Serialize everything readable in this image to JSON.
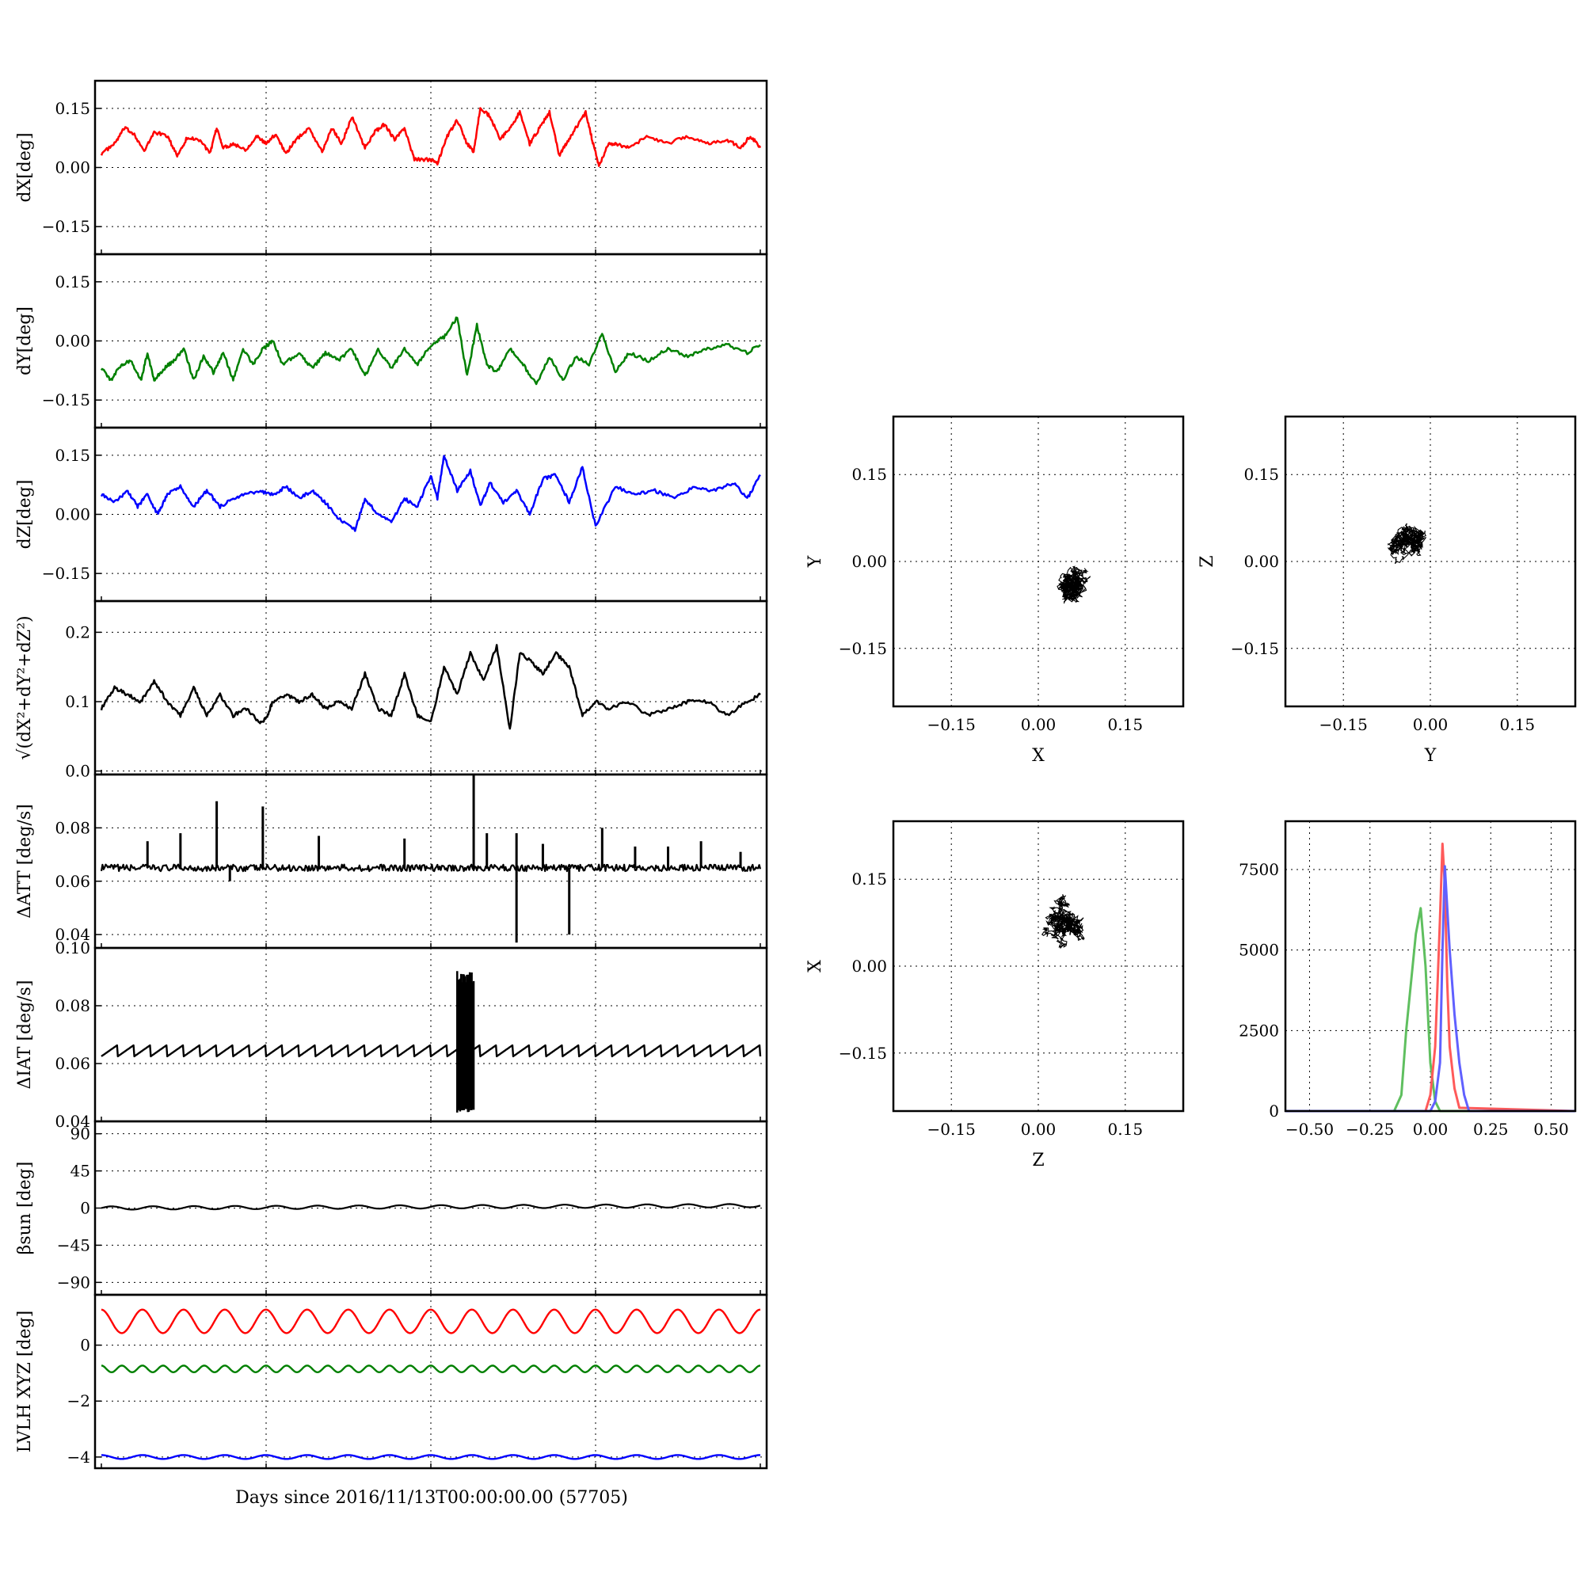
{
  "figure": {
    "xlabel": "Days since 2016/11/13T00:00:00.00 (57705)"
  },
  "chart_data": [
    {
      "type": "line",
      "id": "dx",
      "ylabel": "dX[deg]",
      "ylim": [
        -0.22,
        0.22
      ],
      "yticks": [
        -0.15,
        0.0,
        0.15
      ],
      "ytick_labels": [
        "−0.15",
        "0.00",
        "0.15"
      ],
      "xlim": [
        0,
        1
      ],
      "grid": true,
      "color": "#ff0000",
      "x": [
        0.0,
        0.02,
        0.035,
        0.05,
        0.065,
        0.08,
        0.1,
        0.115,
        0.13,
        0.15,
        0.165,
        0.175,
        0.185,
        0.2,
        0.22,
        0.235,
        0.25,
        0.265,
        0.28,
        0.295,
        0.315,
        0.335,
        0.35,
        0.365,
        0.38,
        0.4,
        0.415,
        0.43,
        0.445,
        0.46,
        0.475,
        0.5,
        0.51,
        0.525,
        0.54,
        0.555,
        0.565,
        0.575,
        0.59,
        0.605,
        0.62,
        0.635,
        0.65,
        0.665,
        0.68,
        0.695,
        0.705,
        0.72,
        0.735,
        0.745,
        0.755,
        0.77,
        0.78,
        0.8,
        0.83,
        0.86,
        0.89,
        0.92,
        0.95,
        0.97,
        0.985,
        1.0
      ],
      "y": [
        0.035,
        0.06,
        0.1,
        0.085,
        0.04,
        0.09,
        0.08,
        0.03,
        0.075,
        0.07,
        0.035,
        0.1,
        0.05,
        0.06,
        0.045,
        0.08,
        0.06,
        0.085,
        0.035,
        0.07,
        0.1,
        0.04,
        0.1,
        0.06,
        0.13,
        0.05,
        0.09,
        0.11,
        0.07,
        0.1,
        0.02,
        0.02,
        0.01,
        0.08,
        0.12,
        0.06,
        0.04,
        0.15,
        0.13,
        0.07,
        0.1,
        0.14,
        0.06,
        0.1,
        0.14,
        0.03,
        0.06,
        0.1,
        0.14,
        0.07,
        0.005,
        0.06,
        0.06,
        0.05,
        0.08,
        0.06,
        0.08,
        0.06,
        0.07,
        0.05,
        0.08,
        0.05
      ]
    },
    {
      "type": "line",
      "id": "dy",
      "ylabel": "dY[deg]",
      "ylim": [
        -0.22,
        0.22
      ],
      "yticks": [
        -0.15,
        0.0,
        0.15
      ],
      "ytick_labels": [
        "−0.15",
        "0.00",
        "0.15"
      ],
      "xlim": [
        0,
        1
      ],
      "grid": true,
      "color": "#008000",
      "x": [
        0.0,
        0.015,
        0.03,
        0.045,
        0.06,
        0.07,
        0.08,
        0.095,
        0.11,
        0.125,
        0.14,
        0.155,
        0.17,
        0.185,
        0.2,
        0.215,
        0.23,
        0.245,
        0.26,
        0.275,
        0.3,
        0.32,
        0.34,
        0.36,
        0.38,
        0.4,
        0.42,
        0.44,
        0.46,
        0.48,
        0.5,
        0.52,
        0.54,
        0.555,
        0.57,
        0.585,
        0.6,
        0.62,
        0.64,
        0.66,
        0.68,
        0.7,
        0.72,
        0.74,
        0.76,
        0.78,
        0.8,
        0.83,
        0.86,
        0.89,
        0.92,
        0.95,
        0.98,
        1.0
      ],
      "y": [
        -0.07,
        -0.1,
        -0.06,
        -0.05,
        -0.1,
        -0.03,
        -0.1,
        -0.07,
        -0.05,
        -0.02,
        -0.1,
        -0.04,
        -0.08,
        -0.03,
        -0.1,
        -0.02,
        -0.06,
        -0.02,
        0.0,
        -0.06,
        -0.03,
        -0.07,
        -0.03,
        -0.05,
        -0.02,
        -0.09,
        -0.02,
        -0.07,
        -0.02,
        -0.06,
        -0.01,
        0.01,
        0.06,
        -0.09,
        0.04,
        -0.06,
        -0.08,
        -0.02,
        -0.06,
        -0.11,
        -0.04,
        -0.1,
        -0.04,
        -0.06,
        0.02,
        -0.08,
        -0.03,
        -0.05,
        -0.02,
        -0.04,
        -0.02,
        -0.01,
        -0.03,
        -0.01
      ]
    },
    {
      "type": "line",
      "id": "dz",
      "ylabel": "dZ[deg]",
      "ylim": [
        -0.22,
        0.22
      ],
      "yticks": [
        -0.15,
        0.0,
        0.15
      ],
      "ytick_labels": [
        "−0.15",
        "0.00",
        "0.15"
      ],
      "xlim": [
        0,
        1
      ],
      "grid": true,
      "color": "#0000ff",
      "x": [
        0.0,
        0.02,
        0.04,
        0.055,
        0.07,
        0.085,
        0.1,
        0.12,
        0.14,
        0.16,
        0.18,
        0.2,
        0.22,
        0.24,
        0.26,
        0.28,
        0.3,
        0.32,
        0.34,
        0.36,
        0.385,
        0.4,
        0.42,
        0.44,
        0.46,
        0.48,
        0.5,
        0.51,
        0.52,
        0.54,
        0.56,
        0.575,
        0.59,
        0.61,
        0.63,
        0.65,
        0.67,
        0.69,
        0.71,
        0.73,
        0.75,
        0.78,
        0.81,
        0.84,
        0.87,
        0.9,
        0.93,
        0.96,
        0.98,
        1.0
      ],
      "y": [
        0.05,
        0.03,
        0.06,
        0.02,
        0.05,
        0.0,
        0.05,
        0.07,
        0.02,
        0.06,
        0.02,
        0.04,
        0.05,
        0.06,
        0.05,
        0.07,
        0.04,
        0.06,
        0.03,
        -0.01,
        -0.04,
        0.04,
        0.0,
        -0.02,
        0.04,
        0.02,
        0.1,
        0.04,
        0.15,
        0.06,
        0.11,
        0.02,
        0.08,
        0.03,
        0.06,
        0.0,
        0.09,
        0.1,
        0.03,
        0.12,
        -0.03,
        0.07,
        0.05,
        0.06,
        0.04,
        0.07,
        0.06,
        0.08,
        0.04,
        0.1
      ]
    },
    {
      "type": "line",
      "id": "rss",
      "ylabel": "√(dX²+dY²+dZ²)",
      "ylim": [
        -0.005,
        0.245
      ],
      "yticks": [
        0.0,
        0.1,
        0.2
      ],
      "ytick_labels": [
        "0.0",
        "0.1",
        "0.2"
      ],
      "xlim": [
        0,
        1
      ],
      "grid": true,
      "color": "#000000",
      "x": [
        0.0,
        0.02,
        0.04,
        0.06,
        0.08,
        0.1,
        0.12,
        0.14,
        0.16,
        0.18,
        0.2,
        0.22,
        0.24,
        0.25,
        0.26,
        0.28,
        0.3,
        0.32,
        0.34,
        0.36,
        0.38,
        0.4,
        0.42,
        0.44,
        0.46,
        0.48,
        0.5,
        0.52,
        0.54,
        0.56,
        0.58,
        0.6,
        0.62,
        0.635,
        0.65,
        0.67,
        0.69,
        0.71,
        0.73,
        0.75,
        0.77,
        0.8,
        0.83,
        0.86,
        0.89,
        0.92,
        0.95,
        0.98,
        1.0
      ],
      "y": [
        0.09,
        0.12,
        0.11,
        0.1,
        0.13,
        0.1,
        0.08,
        0.12,
        0.08,
        0.11,
        0.08,
        0.09,
        0.07,
        0.075,
        0.1,
        0.11,
        0.1,
        0.11,
        0.09,
        0.1,
        0.09,
        0.14,
        0.09,
        0.08,
        0.14,
        0.08,
        0.07,
        0.15,
        0.11,
        0.17,
        0.13,
        0.18,
        0.06,
        0.17,
        0.16,
        0.14,
        0.17,
        0.15,
        0.08,
        0.1,
        0.09,
        0.1,
        0.08,
        0.09,
        0.1,
        0.1,
        0.08,
        0.1,
        0.11
      ]
    },
    {
      "type": "line",
      "id": "datt",
      "ylabel": "ΔATT [deg/s]",
      "ylim": [
        0.035,
        0.1
      ],
      "yticks": [
        0.04,
        0.06,
        0.08
      ],
      "ytick_labels": [
        "0.04",
        "0.06",
        "0.08"
      ],
      "xlim": [
        0,
        1
      ],
      "grid": true,
      "color": "#000000",
      "baseline": 0.065,
      "spikes": [
        [
          0.07,
          0.075
        ],
        [
          0.12,
          0.078
        ],
        [
          0.175,
          0.09
        ],
        [
          0.195,
          0.06
        ],
        [
          0.245,
          0.088
        ],
        [
          0.33,
          0.077
        ],
        [
          0.46,
          0.076
        ],
        [
          0.565,
          0.1
        ],
        [
          0.585,
          0.078
        ],
        [
          0.63,
          0.078
        ],
        [
          0.63,
          0.037
        ],
        [
          0.67,
          0.074
        ],
        [
          0.71,
          0.04
        ],
        [
          0.76,
          0.08
        ],
        [
          0.81,
          0.073
        ],
        [
          0.86,
          0.073
        ],
        [
          0.91,
          0.075
        ],
        [
          0.97,
          0.071
        ]
      ]
    },
    {
      "type": "line",
      "id": "diat",
      "ylabel": "ΔIAT [deg/s]",
      "ylim": [
        0.04,
        0.1
      ],
      "yticks": [
        0.04,
        0.06,
        0.08,
        0.1
      ],
      "ytick_labels": [
        "0.04",
        "0.06",
        "0.08",
        "0.10"
      ],
      "xlim": [
        0,
        1
      ],
      "grid": true,
      "color": "#000000",
      "baseline": 0.064,
      "burst": [
        0.54,
        0.565,
        0.043,
        0.092
      ]
    },
    {
      "type": "line",
      "id": "beta",
      "ylabel": "βsun [deg]",
      "ylim": [
        -105,
        105
      ],
      "yticks": [
        -90,
        -45,
        0,
        45,
        90
      ],
      "ytick_labels": [
        "−90",
        "−45",
        "0",
        "45",
        "90"
      ],
      "xlim": [
        0,
        1
      ],
      "grid": true,
      "color": "#000000",
      "amplitude": 2,
      "offset": 0,
      "cycles": 16
    },
    {
      "type": "line",
      "id": "lvlh",
      "ylabel": "LVLH XYZ [deg]",
      "ylim": [
        -4.4,
        1.8
      ],
      "yticks": [
        -4,
        -2,
        0
      ],
      "ytick_labels": [
        "−4",
        "−2",
        "0"
      ],
      "xlim": [
        0,
        1
      ],
      "grid": true,
      "series": [
        {
          "color": "#ff0000",
          "offset": 0.85,
          "amplitude": 0.42,
          "cycles": 16
        },
        {
          "color": "#008000",
          "offset": -0.85,
          "amplitude": 0.12,
          "cycles": 32
        },
        {
          "color": "#0000ff",
          "offset": -4.0,
          "amplitude": 0.07,
          "cycles": 16
        }
      ]
    },
    {
      "type": "scatter",
      "id": "xy",
      "xlabel": "X",
      "ylabel": "Y",
      "xlim": [
        -0.25,
        0.25
      ],
      "ylim": [
        -0.25,
        0.25
      ],
      "grid": true,
      "color": "#000000",
      "ticks": [
        -0.15,
        0.0,
        0.15
      ],
      "tick_labels": [
        "−0.15",
        "0.00",
        "0.15"
      ],
      "cloud": {
        "cx": 0.06,
        "cy": -0.04,
        "sx": 0.035,
        "sy": 0.03
      }
    },
    {
      "type": "scatter",
      "id": "yz",
      "xlabel": "Y",
      "ylabel": "Z",
      "xlim": [
        -0.25,
        0.25
      ],
      "ylim": [
        -0.25,
        0.25
      ],
      "grid": true,
      "color": "#000000",
      "ticks": [
        -0.15,
        0.0,
        0.15
      ],
      "tick_labels": [
        "−0.15",
        "0.00",
        "0.15"
      ],
      "cloud": {
        "cx": -0.04,
        "cy": 0.04,
        "sx": 0.03,
        "sy": 0.035
      }
    },
    {
      "type": "scatter",
      "id": "zx",
      "xlabel": "Z",
      "ylabel": "X",
      "xlim": [
        -0.25,
        0.25
      ],
      "ylim": [
        -0.25,
        0.25
      ],
      "grid": true,
      "color": "#000000",
      "ticks": [
        -0.15,
        0.0,
        0.15
      ],
      "tick_labels": [
        "−0.15",
        "0.00",
        "0.15"
      ],
      "cloud": {
        "cx": 0.05,
        "cy": 0.07,
        "sx": 0.03,
        "sy": 0.03
      }
    },
    {
      "type": "line",
      "id": "hist",
      "xlim": [
        -0.6,
        0.6
      ],
      "ylim": [
        0,
        9000
      ],
      "grid": true,
      "xticks": [
        -0.5,
        -0.25,
        0.0,
        0.25,
        0.5
      ],
      "xtick_labels": [
        "−0.50",
        "−0.25",
        "0.00",
        "0.25",
        "0.50"
      ],
      "yticks": [
        0,
        2500,
        5000,
        7500
      ],
      "ytick_labels": [
        "0",
        "2500",
        "5000",
        "7500"
      ],
      "series": [
        {
          "color": "#5fbf5f",
          "x": [
            -0.6,
            -0.15,
            -0.12,
            -0.1,
            -0.08,
            -0.06,
            -0.04,
            -0.02,
            0.0,
            0.02,
            0.04,
            0.6
          ],
          "y": [
            0,
            0,
            500,
            2500,
            4000,
            5500,
            6300,
            4500,
            1500,
            300,
            0,
            0
          ]
        },
        {
          "color": "#ff5a5a",
          "x": [
            -0.6,
            -0.02,
            0.0,
            0.02,
            0.03,
            0.04,
            0.05,
            0.06,
            0.07,
            0.08,
            0.1,
            0.12,
            0.6
          ],
          "y": [
            0,
            0,
            500,
            2000,
            4000,
            6000,
            8300,
            7000,
            4000,
            2000,
            700,
            100,
            0
          ]
        },
        {
          "color": "#6060ff",
          "x": [
            -0.6,
            0.0,
            0.02,
            0.04,
            0.05,
            0.06,
            0.08,
            0.1,
            0.12,
            0.14,
            0.16,
            0.6
          ],
          "y": [
            0,
            0,
            300,
            1500,
            5000,
            7600,
            5000,
            3000,
            1500,
            500,
            0,
            0
          ]
        }
      ]
    }
  ]
}
